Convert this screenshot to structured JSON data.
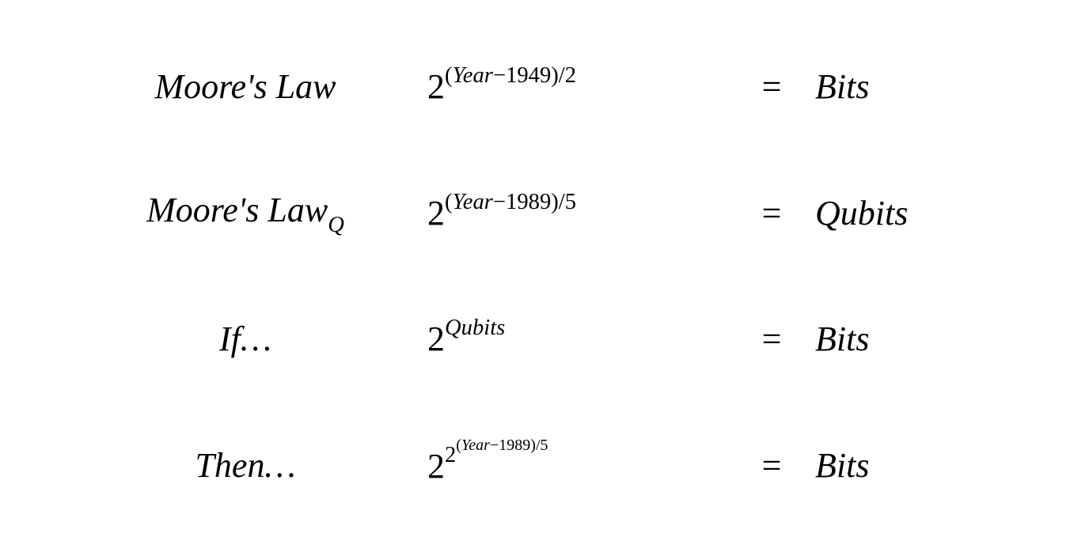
{
  "rows": [
    {
      "label_html": "Moore's Law",
      "expr_html": "<span class='normal'>2</span><span class='sup'><span class='normal'>(</span>Year<span class='normal'>−1949)/2</span></span>",
      "eq": "=",
      "result": "Bits"
    },
    {
      "label_html": "Moore's Law<span class='sub'>Q</span>",
      "expr_html": "<span class='normal'>2</span><span class='sup'><span class='normal'>(</span>Year<span class='normal'>−1989)/5</span></span>",
      "eq": "=",
      "result": "Qubits"
    },
    {
      "label_html": "If…",
      "expr_html": "<span class='normal'>2</span><span class='sup'>Qubits</span>",
      "eq": "=",
      "result": "Bits"
    },
    {
      "label_html": "Then…",
      "expr_html": "<span class='normal'>2</span><span class='sup'><span class='normal'>2</span><span class='supsup'><span class='normal'>(</span>Year<span class='normal'>−1989)/5</span></span></span>",
      "eq": "=",
      "result": "Bits"
    }
  ],
  "colors": {
    "background": "#ffffff",
    "text": "#000000"
  },
  "typography": {
    "font_family": "Georgia, Times New Roman, serif",
    "base_fontsize_pt": 33,
    "style": "italic"
  }
}
